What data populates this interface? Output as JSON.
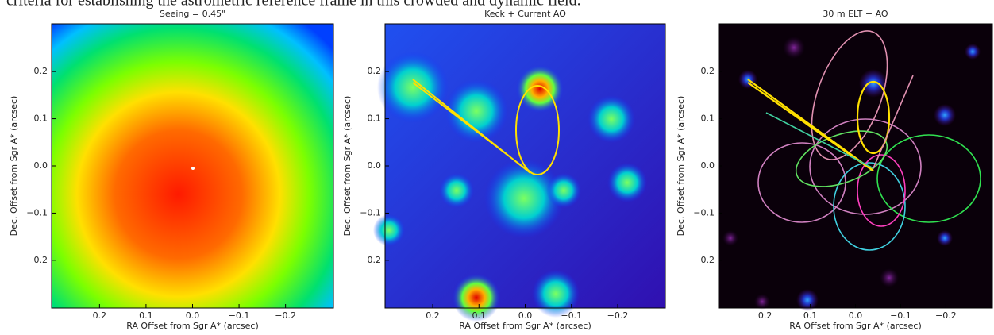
{
  "header": {
    "text": "criteria for establishing the astrometric reference frame in this crowded and dynamic field."
  },
  "panels": [
    {
      "title": "Seeing = 0.45\"",
      "xlabel": "RA Offset from Sgr A* (arcsec)",
      "ylabel": "Dec. Offset from Sgr A* (arcsec)",
      "xticks": [
        "0.2",
        "0.1",
        "0.0",
        "−0.1",
        "−0.2"
      ],
      "yticks": [
        "0.2",
        "0.1",
        "0.0",
        "−0.1",
        "−0.2"
      ]
    },
    {
      "title": "Keck + Current AO",
      "xlabel": "RA Offset from Sgr A* (arcsec)",
      "ylabel": "Dec. Offset from Sgr A* (arcsec)",
      "xticks": [
        "0.2",
        "0.1",
        "0.0",
        "−0.1",
        "−0.2"
      ],
      "yticks": [
        "0.2",
        "0.1",
        "0.0",
        "−0.1",
        "−0.2"
      ]
    },
    {
      "title": "30 m ELT + AO",
      "xlabel": "RA Offset from Sgr A* (arcsec)",
      "ylabel": "Dec. Offset from Sgr A* (arcsec)",
      "xticks": [
        "0.2",
        "0.1",
        "0.0",
        "−0.1",
        "−0.2"
      ],
      "yticks": [
        "0.2",
        "0.1",
        "0.0",
        "−0.1",
        "−0.2"
      ]
    }
  ]
}
